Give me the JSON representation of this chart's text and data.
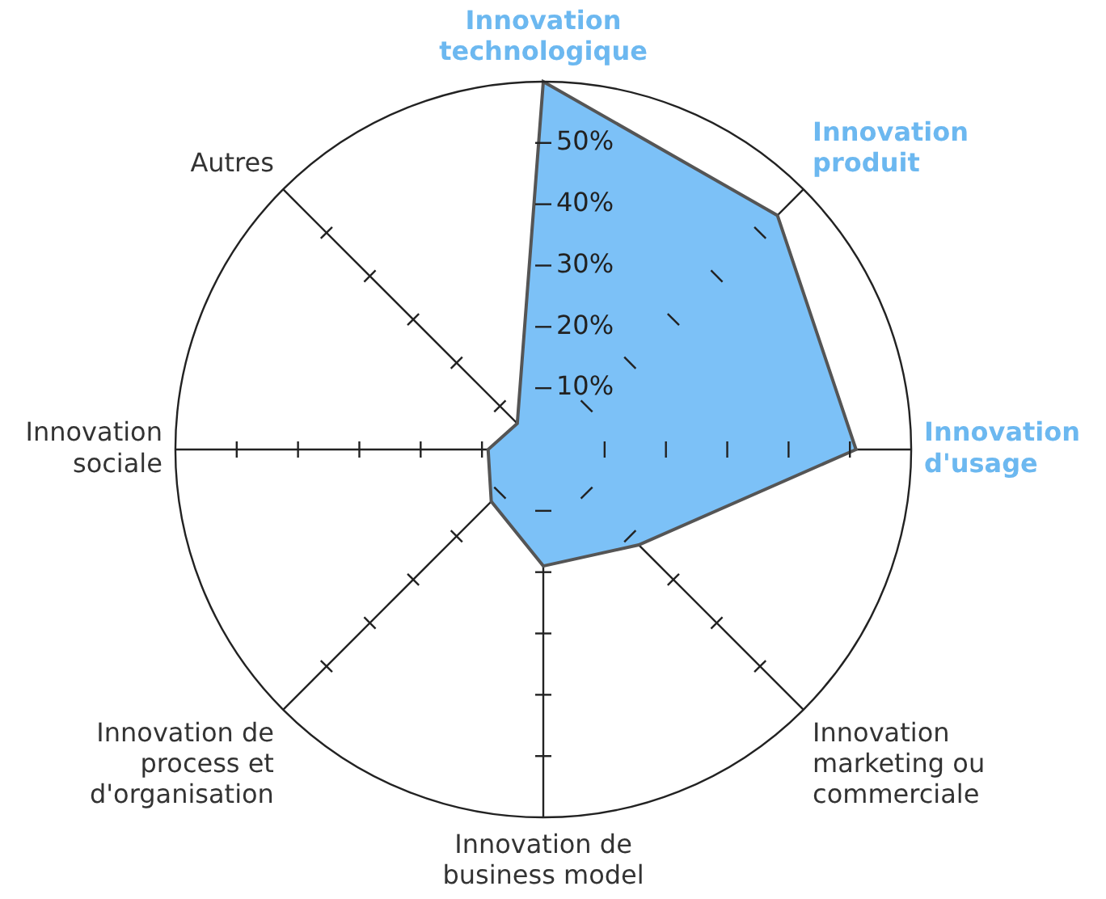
{
  "chart_data": {
    "type": "radar",
    "categories": [
      "Innovation technologique",
      "Innovation produit",
      "Innovation d'usage",
      "Innovation marketing ou commerciale",
      "Innovation de business model",
      "Innovation de process et d'organisation",
      "Innovation sociale",
      "Autres"
    ],
    "colors": [
      "#6cb8f0",
      "#6cb8f0",
      "#6cb8f0",
      "#333333",
      "#333333",
      "#333333",
      "#333333",
      "#333333"
    ],
    "series": [
      {
        "color": "#7cc1f7",
        "values": [
          60,
          54,
          51,
          22,
          19,
          12,
          9,
          6
        ]
      }
    ],
    "relative": false,
    "ylim": [
      0,
      60
    ],
    "yticks": [
      {
        "value": 10,
        "label": "10%"
      },
      {
        "value": 20,
        "label": "20%"
      },
      {
        "value": 30,
        "label": "30%"
      },
      {
        "value": 40,
        "label": "40%"
      },
      {
        "value": 50,
        "label": "50%"
      }
    ],
    "grid": false,
    "legend": false
  }
}
